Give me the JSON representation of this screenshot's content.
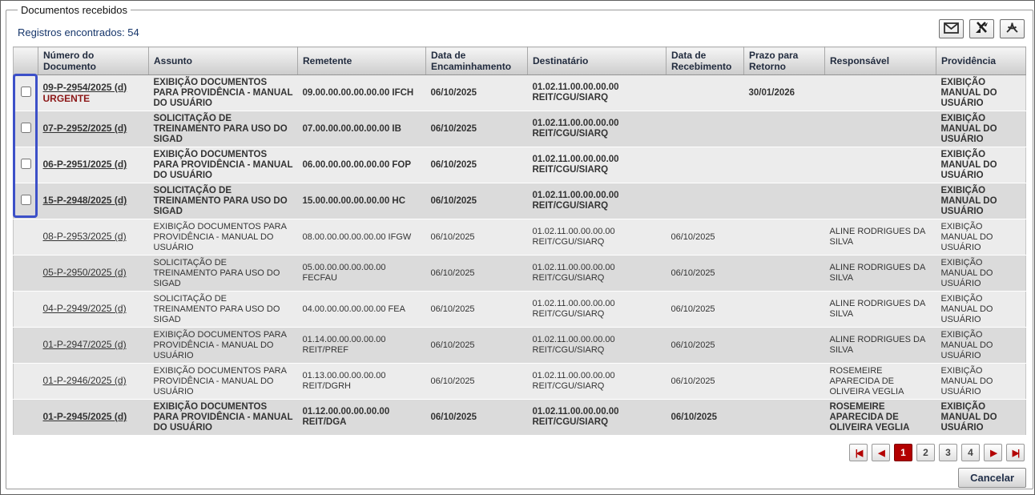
{
  "panel": {
    "legend": "Documentos recebidos",
    "records_found": "Registros encontrados: 54"
  },
  "toolbar": {
    "icons": [
      "email-icon",
      "excel-export-icon",
      "pdf-export-icon"
    ]
  },
  "table": {
    "columns": [
      "",
      "Número do Documento",
      "Assunto",
      "Remetente",
      "Data de Encaminhamento",
      "Destinatário",
      "Data de Recebimento",
      "Prazo para Retorno",
      "Responsável",
      "Providência"
    ],
    "rows": [
      {
        "checkbox": true,
        "bold": true,
        "number": "09-P-2954/2025 (d)",
        "urgent": "URGENTE",
        "subject": "EXIBIÇÃO DOCUMENTOS PARA PROVIDÊNCIA - MANUAL DO USUÁRIO",
        "sender": "09.00.00.00.00.00.00 IFCH",
        "forward_date": "06/10/2025",
        "recipient": "01.02.11.00.00.00.00 REIT/CGU/SIARQ",
        "receipt_date": "",
        "return_deadline": "30/01/2026",
        "responsible": "",
        "action": "EXIBIÇÃO MANUAL DO USUÁRIO"
      },
      {
        "checkbox": true,
        "bold": true,
        "number": "07-P-2952/2025 (d)",
        "urgent": "",
        "subject": "SOLICITAÇÃO DE TREINAMENTO PARA USO DO SIGAD",
        "sender": "07.00.00.00.00.00.00 IB",
        "forward_date": "06/10/2025",
        "recipient": "01.02.11.00.00.00.00 REIT/CGU/SIARQ",
        "receipt_date": "",
        "return_deadline": "",
        "responsible": "",
        "action": "EXIBIÇÃO MANUAL DO USUÁRIO"
      },
      {
        "checkbox": true,
        "bold": true,
        "number": "06-P-2951/2025 (d)",
        "urgent": "",
        "subject": "EXIBIÇÃO DOCUMENTOS PARA PROVIDÊNCIA - MANUAL DO USUÁRIO",
        "sender": "06.00.00.00.00.00.00 FOP",
        "forward_date": "06/10/2025",
        "recipient": "01.02.11.00.00.00.00 REIT/CGU/SIARQ",
        "receipt_date": "",
        "return_deadline": "",
        "responsible": "",
        "action": "EXIBIÇÃO MANUAL DO USUÁRIO"
      },
      {
        "checkbox": true,
        "bold": true,
        "number": "15-P-2948/2025 (d)",
        "urgent": "",
        "subject": "SOLICITAÇÃO DE TREINAMENTO PARA USO DO SIGAD",
        "sender": "15.00.00.00.00.00.00 HC",
        "forward_date": "06/10/2025",
        "recipient": "01.02.11.00.00.00.00 REIT/CGU/SIARQ",
        "receipt_date": "",
        "return_deadline": "",
        "responsible": "",
        "action": "EXIBIÇÃO MANUAL DO USUÁRIO"
      },
      {
        "checkbox": false,
        "bold": false,
        "number": "08-P-2953/2025 (d)",
        "urgent": "",
        "subject": "EXIBIÇÃO DOCUMENTOS PARA PROVIDÊNCIA - MANUAL DO USUÁRIO",
        "sender": "08.00.00.00.00.00.00 IFGW",
        "forward_date": "06/10/2025",
        "recipient": "01.02.11.00.00.00.00 REIT/CGU/SIARQ",
        "receipt_date": "06/10/2025",
        "return_deadline": "",
        "responsible": "ALINE RODRIGUES DA SILVA",
        "action": "EXIBIÇÃO MANUAL DO USUÁRIO"
      },
      {
        "checkbox": false,
        "bold": false,
        "number": "05-P-2950/2025 (d)",
        "urgent": "",
        "subject": "SOLICITAÇÃO DE TREINAMENTO PARA USO DO SIGAD",
        "sender": "05.00.00.00.00.00.00 FECFAU",
        "forward_date": "06/10/2025",
        "recipient": "01.02.11.00.00.00.00 REIT/CGU/SIARQ",
        "receipt_date": "06/10/2025",
        "return_deadline": "",
        "responsible": "ALINE RODRIGUES DA SILVA",
        "action": "EXIBIÇÃO MANUAL DO USUÁRIO"
      },
      {
        "checkbox": false,
        "bold": false,
        "number": "04-P-2949/2025 (d)",
        "urgent": "",
        "subject": "SOLICITAÇÃO DE TREINAMENTO PARA USO DO SIGAD",
        "sender": "04.00.00.00.00.00.00 FEA",
        "forward_date": "06/10/2025",
        "recipient": "01.02.11.00.00.00.00 REIT/CGU/SIARQ",
        "receipt_date": "06/10/2025",
        "return_deadline": "",
        "responsible": "ALINE RODRIGUES DA SILVA",
        "action": "EXIBIÇÃO MANUAL DO USUÁRIO"
      },
      {
        "checkbox": false,
        "bold": false,
        "number": "01-P-2947/2025 (d)",
        "urgent": "",
        "subject": "EXIBIÇÃO DOCUMENTOS PARA PROVIDÊNCIA - MANUAL DO USUÁRIO",
        "sender": "01.14.00.00.00.00.00 REIT/PREF",
        "forward_date": "06/10/2025",
        "recipient": "01.02.11.00.00.00.00 REIT/CGU/SIARQ",
        "receipt_date": "06/10/2025",
        "return_deadline": "",
        "responsible": "ALINE RODRIGUES DA SILVA",
        "action": "EXIBIÇÃO MANUAL DO USUÁRIO"
      },
      {
        "checkbox": false,
        "bold": false,
        "number": "01-P-2946/2025 (d)",
        "urgent": "",
        "subject": "EXIBIÇÃO DOCUMENTOS PARA PROVIDÊNCIA - MANUAL DO USUÁRIO",
        "sender": "01.13.00.00.00.00.00 REIT/DGRH",
        "forward_date": "06/10/2025",
        "recipient": "01.02.11.00.00.00.00 REIT/CGU/SIARQ",
        "receipt_date": "06/10/2025",
        "return_deadline": "",
        "responsible": "ROSEMEIRE APARECIDA DE OLIVEIRA VEGLIA",
        "action": "EXIBIÇÃO MANUAL DO USUÁRIO"
      },
      {
        "checkbox": false,
        "bold": true,
        "number": "01-P-2945/2025 (d)",
        "urgent": "",
        "subject": "EXIBIÇÃO DOCUMENTOS PARA PROVIDÊNCIA - MANUAL DO USUÁRIO",
        "sender": "01.12.00.00.00.00.00 REIT/DGA",
        "forward_date": "06/10/2025",
        "recipient": "01.02.11.00.00.00.00 REIT/CGU/SIARQ",
        "receipt_date": "06/10/2025",
        "return_deadline": "",
        "responsible": "ROSEMEIRE APARECIDA DE OLIVEIRA VEGLIA",
        "action": "EXIBIÇÃO MANUAL DO USUÁRIO"
      }
    ]
  },
  "pagination": {
    "first_icon": "|◀",
    "prev_icon": "◀",
    "pages": [
      "1",
      "2",
      "3",
      "4"
    ],
    "current_page": "1",
    "next_icon": "▶",
    "last_icon": "▶|"
  },
  "footer": {
    "cancel_label": "Cancelar"
  },
  "colors": {
    "accent_red": "#b30000",
    "selection_blue": "#3c50c8",
    "urgent_red": "#8c1717",
    "records_text": "#16366b",
    "row_odd": "#ececec",
    "row_even": "#dbdbdb"
  }
}
